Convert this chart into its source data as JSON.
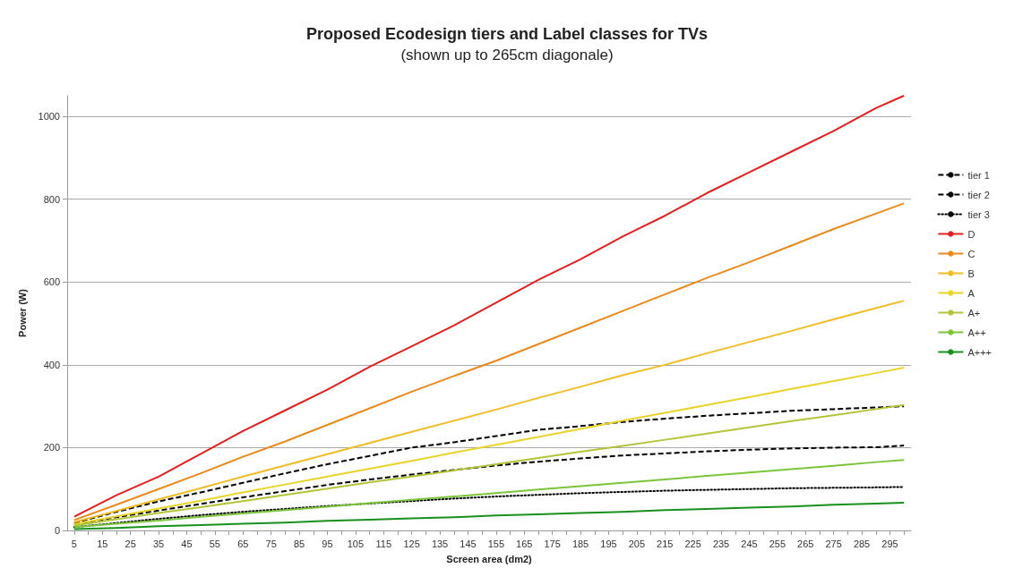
{
  "chart_data": {
    "type": "line",
    "title": "Proposed Ecodesign tiers and Label classes for TVs",
    "subtitle": "(shown up to 265cm diagonale)",
    "xlabel": "Screen area (dm2)",
    "ylabel": "Power (W)",
    "x": [
      5,
      20,
      35,
      50,
      65,
      80,
      95,
      110,
      125,
      140,
      155,
      170,
      185,
      200,
      215,
      230,
      245,
      260,
      275,
      290,
      300
    ],
    "series": [
      {
        "name": "tier 1",
        "color": "#000000",
        "line_style": "dashed",
        "values": [
          18,
          45,
          70,
          92,
          115,
          138,
          160,
          180,
          200,
          213,
          228,
          243,
          252,
          262,
          270,
          277,
          283,
          289,
          293,
          297,
          300
        ]
      },
      {
        "name": "tier 2",
        "color": "#000000",
        "line_style": "dashed",
        "values": [
          14,
          32,
          48,
          64,
          80,
          95,
          110,
          123,
          135,
          146,
          157,
          166,
          174,
          181,
          186,
          191,
          195,
          198,
          200,
          201,
          205
        ]
      },
      {
        "name": "tier 3",
        "color": "#000000",
        "line_style": "dotted",
        "values": [
          8,
          18,
          28,
          37,
          45,
          52,
          59,
          65,
          71,
          77,
          82,
          86,
          90,
          93,
          96,
          98,
          100,
          102,
          103,
          104,
          105
        ]
      },
      {
        "name": "D",
        "color": "#e02020",
        "values": [
          33,
          85,
          130,
          185,
          240,
          290,
          340,
          395,
          445,
          495,
          550,
          605,
          655,
          710,
          760,
          815,
          865,
          915,
          965,
          1020,
          1050
        ]
      },
      {
        "name": "C",
        "color": "#e88a1e",
        "values": [
          25,
          62,
          100,
          138,
          178,
          215,
          255,
          295,
          335,
          373,
          410,
          450,
          490,
          530,
          570,
          610,
          648,
          688,
          728,
          765,
          790
        ]
      },
      {
        "name": "B",
        "color": "#f0bc28",
        "values": [
          20,
          47,
          75,
          102,
          130,
          157,
          184,
          211,
          238,
          265,
          292,
          320,
          347,
          375,
          400,
          428,
          455,
          482,
          510,
          537,
          555
        ]
      },
      {
        "name": "A",
        "color": "#e8d42a",
        "values": [
          15,
          34,
          53,
          72,
          92,
          111,
          130,
          149,
          168,
          188,
          207,
          226,
          245,
          265,
          284,
          303,
          322,
          342,
          361,
          380,
          393
        ]
      },
      {
        "name": "A+",
        "color": "#b4c43a",
        "values": [
          12,
          27,
          42,
          56,
          71,
          86,
          101,
          116,
          130,
          145,
          160,
          175,
          190,
          204,
          219,
          234,
          249,
          264,
          278,
          293,
          303
        ]
      },
      {
        "name": "A++",
        "color": "#7cc43c",
        "values": [
          8,
          16,
          24,
          33,
          41,
          49,
          57,
          66,
          74,
          82,
          90,
          99,
          107,
          115,
          123,
          132,
          140,
          148,
          156,
          165,
          170
        ]
      },
      {
        "name": "A+++",
        "color": "#18901e",
        "values": [
          3,
          6,
          10,
          13,
          16,
          19,
          23,
          26,
          29,
          32,
          36,
          39,
          42,
          45,
          49,
          52,
          55,
          58,
          62,
          65,
          67
        ]
      }
    ],
    "xlim": [
      2.5,
      302.5
    ],
    "xticks": [
      5,
      {
        "value": 10,
        "label": null
      },
      15,
      {
        "value": 20,
        "label": null
      },
      25,
      {
        "value": 30,
        "label": null
      },
      35,
      {
        "value": 40,
        "label": null
      },
      45,
      {
        "value": 50,
        "label": null
      },
      55,
      {
        "value": 60,
        "label": null
      },
      65,
      {
        "value": 70,
        "label": null
      },
      75,
      {
        "value": 80,
        "label": null
      },
      85,
      {
        "value": 90,
        "label": null
      },
      95,
      {
        "value": 100,
        "label": null
      },
      105,
      {
        "value": 110,
        "label": null
      },
      115,
      {
        "value": 120,
        "label": null
      },
      125,
      {
        "value": 130,
        "label": null
      },
      135,
      {
        "value": 140,
        "label": null
      },
      145,
      {
        "value": 150,
        "label": null
      },
      155,
      {
        "value": 160,
        "label": null
      },
      165,
      {
        "value": 170,
        "label": null
      },
      175,
      {
        "value": 180,
        "label": null
      },
      185,
      {
        "value": 190,
        "label": null
      },
      195,
      {
        "value": 200,
        "label": null
      },
      205,
      {
        "value": 210,
        "label": null
      },
      215,
      {
        "value": 220,
        "label": null
      },
      225,
      {
        "value": 230,
        "label": null
      },
      235,
      {
        "value": 240,
        "label": null
      },
      245,
      {
        "value": 250,
        "label": null
      },
      255,
      {
        "value": 260,
        "label": null
      },
      265,
      {
        "value": 270,
        "label": null
      },
      275,
      {
        "value": 280,
        "label": null
      },
      285,
      {
        "value": 290,
        "label": null
      },
      295,
      {
        "value": 300,
        "label": null
      }
    ],
    "ylim": [
      0,
      1050
    ],
    "yticks": [
      0,
      200,
      400,
      600,
      800,
      1000
    ],
    "grid": "y",
    "legend": "right",
    "marker": "none"
  }
}
